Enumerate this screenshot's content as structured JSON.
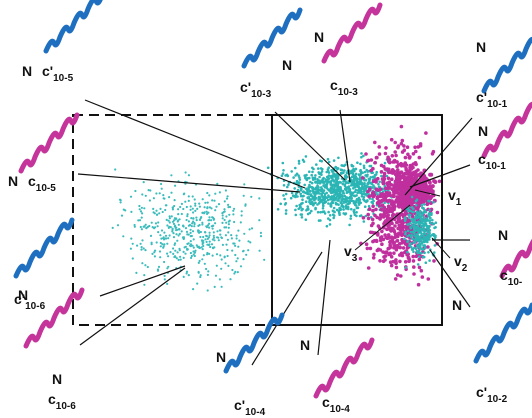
{
  "structures": [
    {
      "n": "N",
      "symbol": "c'",
      "subscript": "10-5"
    },
    {
      "n": "N",
      "symbol": "c'",
      "subscript": "10-3"
    },
    {
      "n": "N",
      "symbol": "c",
      "subscript": "10-3"
    },
    {
      "n": "N",
      "symbol": "c'",
      "subscript": "10-1"
    },
    {
      "n": "N",
      "symbol": "c",
      "subscript": "10-1"
    },
    {
      "n": "N",
      "symbol": "c",
      "subscript": "10-5"
    },
    {
      "n": "N",
      "symbol": "c",
      "subscript": "10-"
    },
    {
      "n": "N",
      "symbol": "c'",
      "subscript": "10-6"
    },
    {
      "n": "N",
      "symbol": "c",
      "subscript": "10-6"
    },
    {
      "n": "N",
      "symbol": "c'",
      "subscript": "10-4"
    },
    {
      "n": "N",
      "symbol": "c",
      "subscript": "10-4"
    },
    {
      "n": "N",
      "symbol": "c'",
      "subscript": "10-2"
    }
  ],
  "vectors": [
    {
      "symbol": "v",
      "subscript": "1"
    },
    {
      "symbol": "v",
      "subscript": "3"
    },
    {
      "symbol": "v",
      "subscript": "2"
    }
  ]
}
